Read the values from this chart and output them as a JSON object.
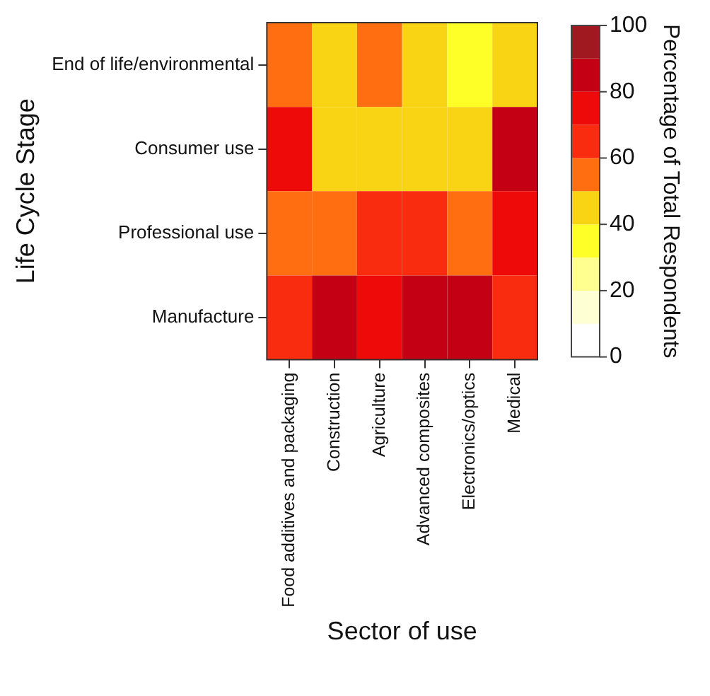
{
  "chart_data": {
    "type": "heatmap",
    "xlabel": "Sector of use",
    "ylabel": "Life Cycle Stage",
    "clabel": "Percentage of Total Respondents",
    "categories": [
      "Food additives and packaging",
      "Construction",
      "Agriculture",
      "Advanced composites",
      "Electronics/optics",
      "Medical"
    ],
    "y_categories": [
      "End of life/environmental",
      "Consumer use",
      "Professional use",
      "Manufacture"
    ],
    "cells": [
      [
        55,
        45,
        55,
        45,
        35,
        45
      ],
      [
        75,
        45,
        45,
        45,
        45,
        85
      ],
      [
        55,
        55,
        65,
        65,
        55,
        75
      ],
      [
        65,
        85,
        75,
        85,
        85,
        65
      ]
    ],
    "clim": [
      0,
      100
    ],
    "cticks": [
      0,
      20,
      40,
      60,
      80,
      100
    ]
  }
}
